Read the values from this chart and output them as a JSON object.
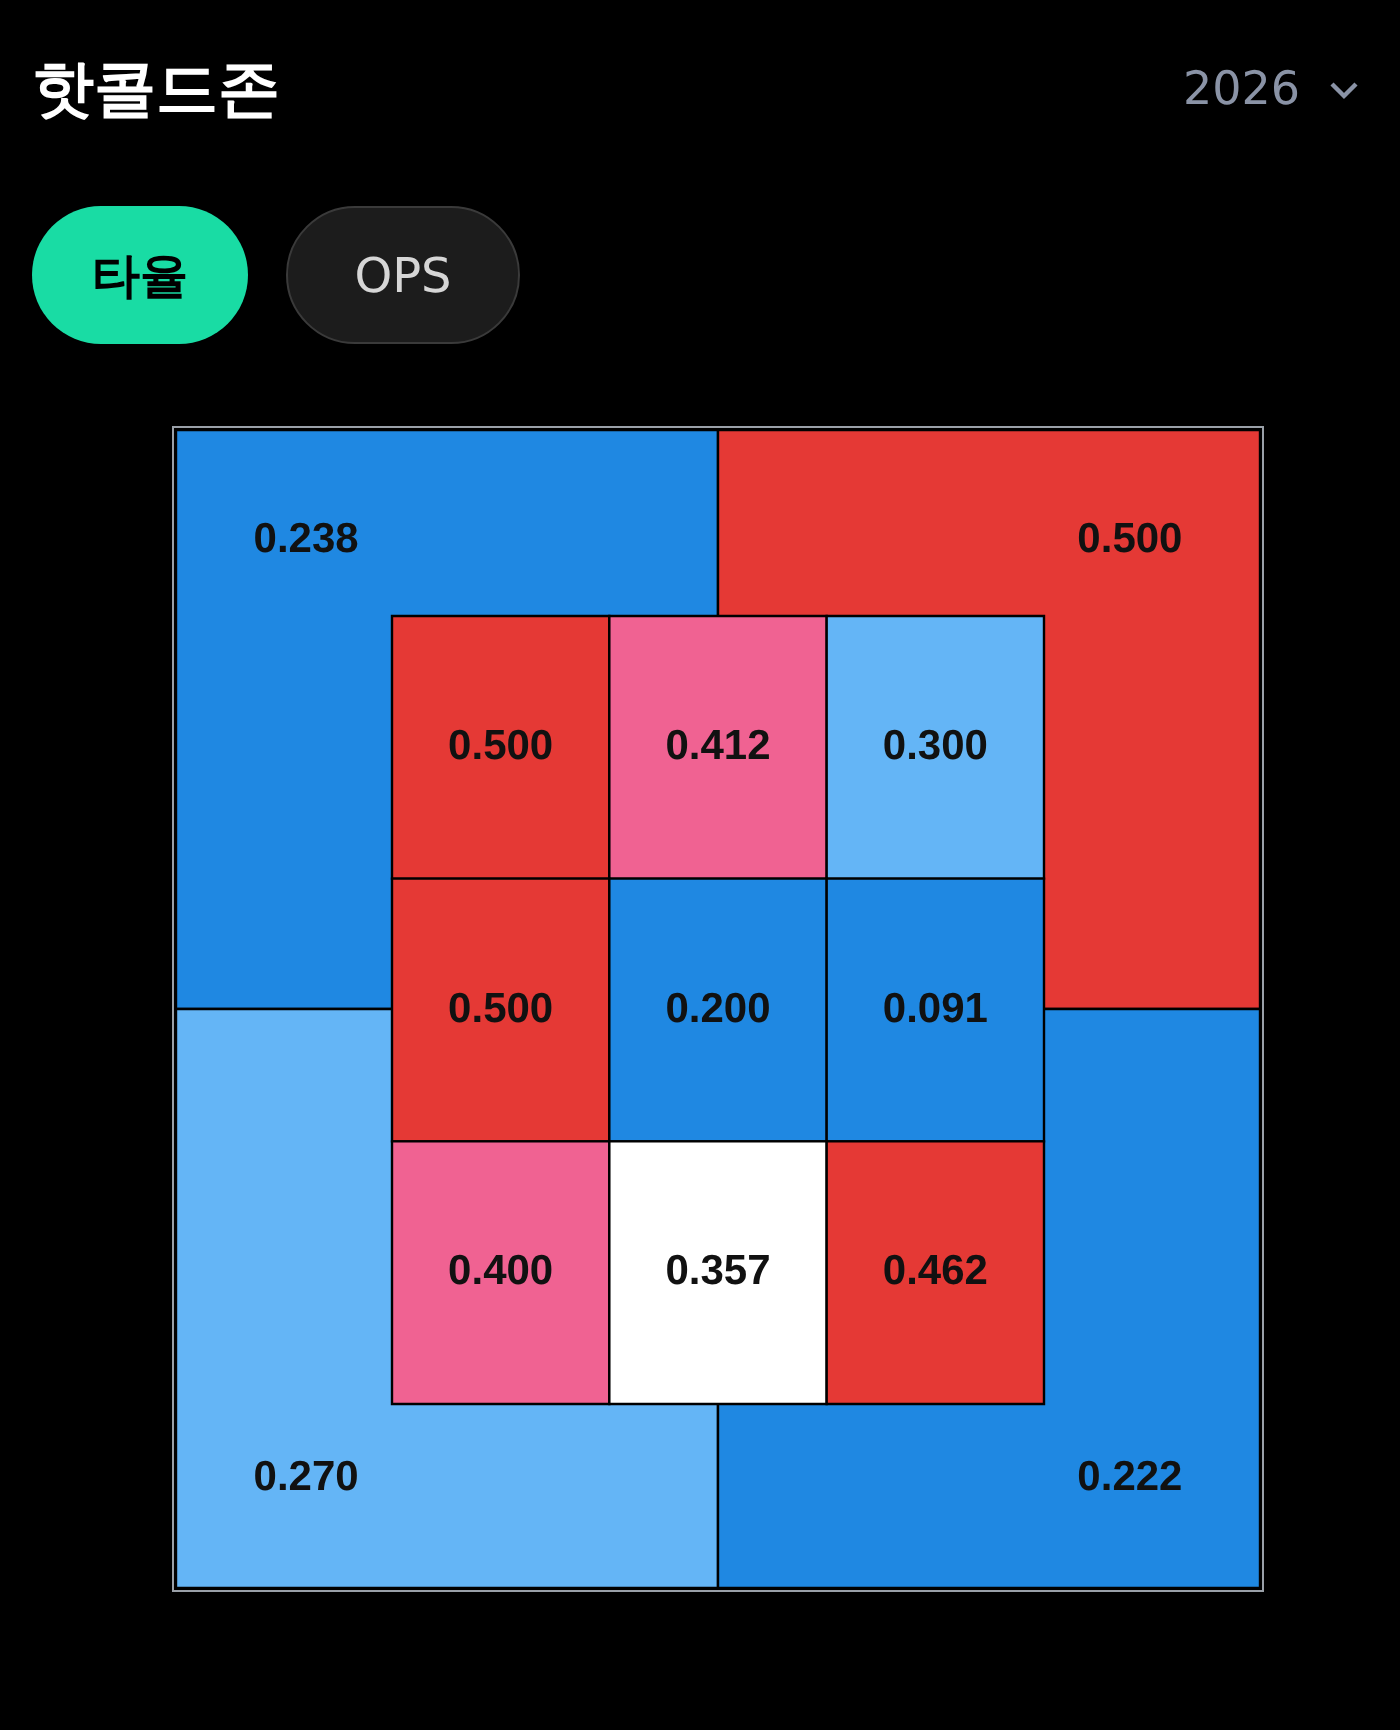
{
  "chart_data": [
    {
      "type": "heatmap",
      "title": "핫콜드존",
      "annotations": [
        "2026",
        "타율",
        "OPS"
      ],
      "categories": [
        null,
        null
      ],
      "y_categories": [
        null,
        null
      ],
      "cells": [
        [
          0.238,
          0.5
        ],
        [
          0.27,
          0.222
        ]
      ],
      "cell_labels": [
        [
          "0.238",
          "0.500"
        ],
        [
          "0.270",
          "0.222"
        ]
      ],
      "colors": [
        [
          "#1f88e2",
          "#e53935"
        ],
        [
          "#64b5f6",
          "#1f88e2"
        ]
      ]
    },
    {
      "type": "heatmap",
      "categories": [
        null,
        null,
        null
      ],
      "y_categories": [
        null,
        null,
        null
      ],
      "cells": [
        [
          0.5,
          0.412,
          0.3
        ],
        [
          0.5,
          0.2,
          0.091
        ],
        [
          0.4,
          0.357,
          0.462
        ]
      ],
      "cell_labels": [
        [
          "0.500",
          "0.412",
          "0.300"
        ],
        [
          "0.500",
          "0.200",
          "0.091"
        ],
        [
          "0.400",
          "0.357",
          "0.462"
        ]
      ],
      "colors": [
        [
          "#e53935",
          "#f06292",
          "#64b5f6"
        ],
        [
          "#e53935",
          "#1f88e2",
          "#1f88e2"
        ],
        [
          "#f06292",
          "#ffffff",
          "#e53935"
        ]
      ]
    }
  ]
}
